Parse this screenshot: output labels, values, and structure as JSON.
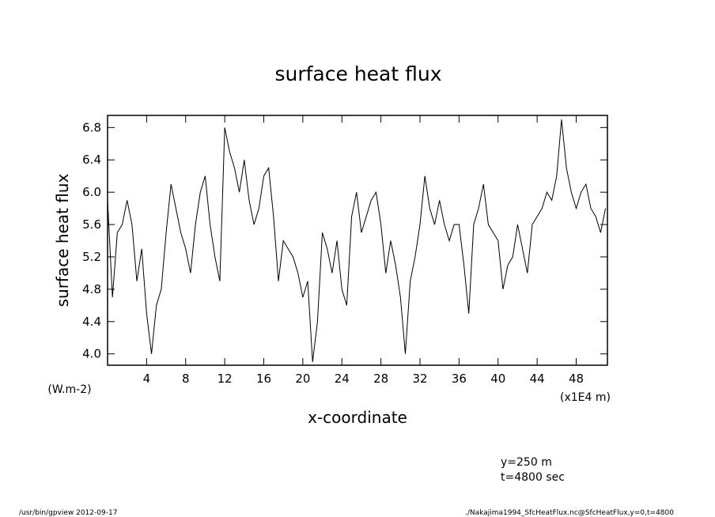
{
  "chart_data": {
    "type": "line",
    "title": "surface heat flux",
    "ylabel": "surface heat flux",
    "yunits": "(W.m-2)",
    "xlabel": "x-coordinate",
    "xunits": "(x1E4 m)",
    "annotations": [
      "y=250 m",
      "t=4800 sec"
    ],
    "footer_left": "/usr/bin/gpview  2012-09-17",
    "footer_right": "./Nakajima1994_SfcHeatFlux.nc@SfcHeatFlux,y=0,t=4800",
    "color": "#000000",
    "x": [
      0,
      0.5,
      1,
      1.5,
      2,
      2.5,
      3,
      3.5,
      4,
      4.5,
      5,
      5.5,
      6,
      6.5,
      7,
      7.5,
      8,
      8.5,
      9,
      9.5,
      10,
      10.5,
      11,
      11.5,
      12,
      12.5,
      13,
      13.5,
      14,
      14.5,
      15,
      15.5,
      16,
      16.5,
      17,
      17.5,
      18,
      18.5,
      19,
      19.5,
      20,
      20.5,
      21,
      21.5,
      22,
      22.5,
      23,
      23.5,
      24,
      24.5,
      25,
      25.5,
      26,
      26.5,
      27,
      27.5,
      28,
      28.5,
      29,
      29.5,
      30,
      30.5,
      31,
      31.5,
      32,
      32.5,
      33,
      33.5,
      34,
      34.5,
      35,
      35.5,
      36,
      36.5,
      37,
      37.5,
      38,
      38.5,
      39,
      39.5,
      40,
      40.5,
      41,
      41.5,
      42,
      42.5,
      43,
      43.5,
      44,
      44.5,
      45,
      45.5,
      46,
      46.5,
      47,
      47.5,
      48,
      48.5,
      49,
      49.5,
      50,
      50.5,
      51
    ],
    "values": [
      5.9,
      4.7,
      5.5,
      5.6,
      5.9,
      5.6,
      4.9,
      5.3,
      4.5,
      4.0,
      4.6,
      4.8,
      5.5,
      6.1,
      5.8,
      5.5,
      5.3,
      5.0,
      5.6,
      6.0,
      6.2,
      5.6,
      5.2,
      4.9,
      6.8,
      6.5,
      6.3,
      6.0,
      6.4,
      5.9,
      5.6,
      5.8,
      6.2,
      6.3,
      5.7,
      4.9,
      5.4,
      5.3,
      5.2,
      5.0,
      4.7,
      4.9,
      3.9,
      4.4,
      5.5,
      5.3,
      5.0,
      5.4,
      4.8,
      4.6,
      5.7,
      6.0,
      5.5,
      5.7,
      5.9,
      6.0,
      5.6,
      5.0,
      5.4,
      5.1,
      4.7,
      4.0,
      4.9,
      5.2,
      5.6,
      6.2,
      5.8,
      5.6,
      5.9,
      5.6,
      5.4,
      5.6,
      5.6,
      5.1,
      4.5,
      5.6,
      5.8,
      6.1,
      5.6,
      5.5,
      5.4,
      4.8,
      5.1,
      5.2,
      5.6,
      5.3,
      5.0,
      5.6,
      5.7,
      5.8,
      6.0,
      5.9,
      6.2,
      6.9,
      6.3,
      6.0,
      5.8,
      6.0,
      6.1,
      5.8,
      5.7,
      5.5,
      5.8
    ],
    "xlim": [
      0,
      51.2
    ],
    "ylim": [
      3.86,
      6.95
    ],
    "xticks": [
      4,
      8,
      12,
      16,
      20,
      24,
      28,
      32,
      36,
      40,
      44,
      48
    ],
    "yticks": [
      {
        "value": 4,
        "label": "4.0"
      },
      4.4,
      4.8,
      5.2,
      5.6,
      {
        "value": 6,
        "label": "6.0"
      },
      6.4,
      6.8
    ]
  }
}
